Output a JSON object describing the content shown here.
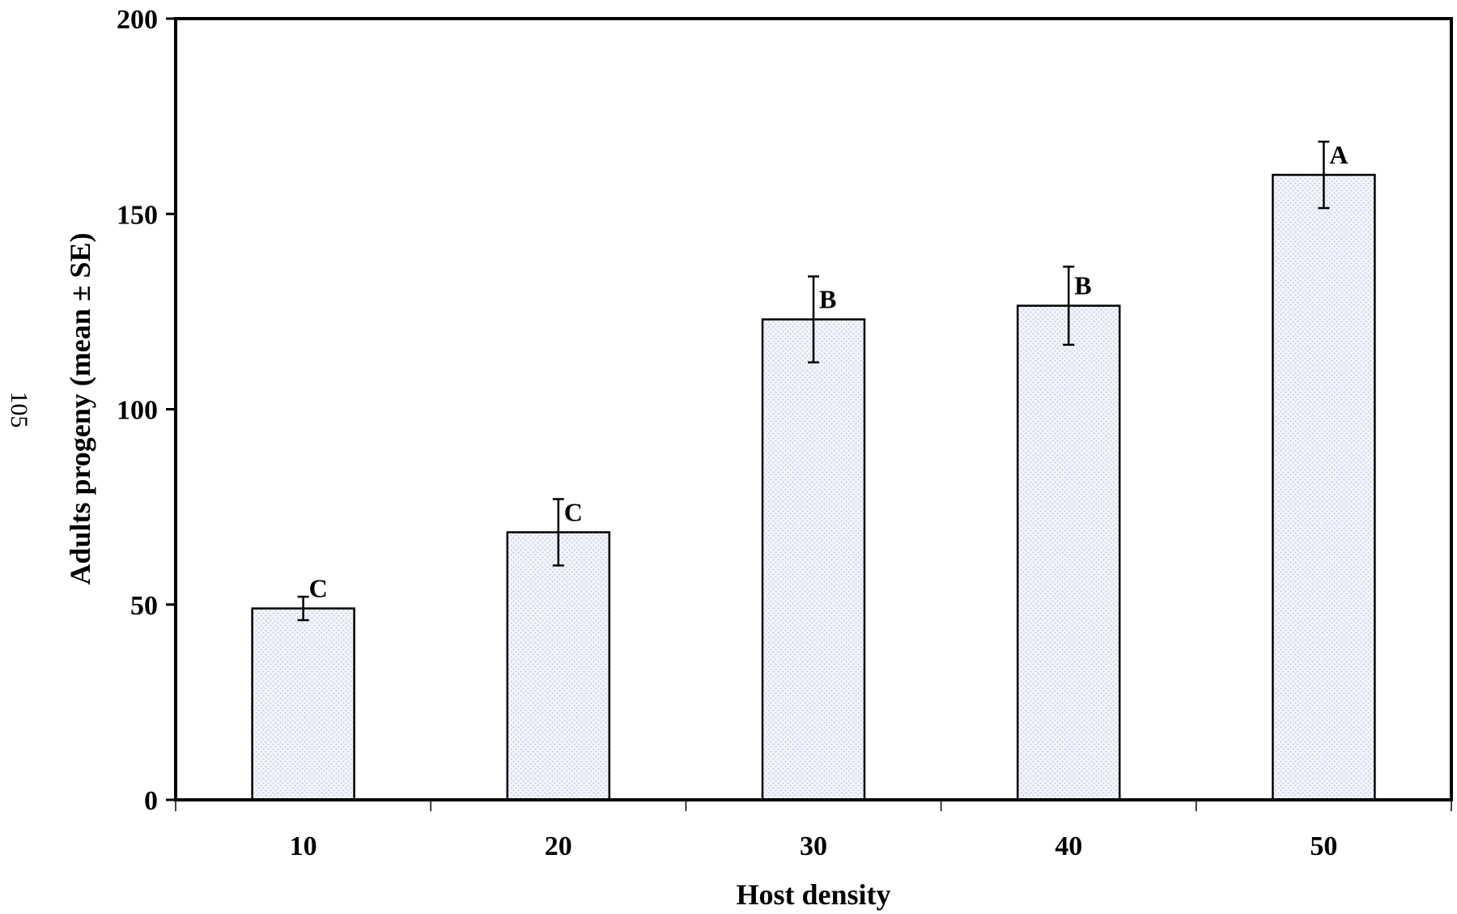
{
  "page_number": "105",
  "chart_data": {
    "type": "bar",
    "title": "",
    "xlabel": "Host density",
    "ylabel": "Adults progeny (mean ± SE)",
    "categories": [
      "10",
      "20",
      "30",
      "40",
      "50"
    ],
    "values": [
      49,
      68.5,
      123,
      126.5,
      160
    ],
    "errors": [
      3,
      8.5,
      11,
      10,
      8.5
    ],
    "significance_letters": [
      "C",
      "C",
      "B",
      "B",
      "A"
    ],
    "ylim": [
      0,
      200
    ],
    "yticks": [
      0,
      50,
      100,
      150,
      200
    ],
    "grid": false,
    "legend": "none",
    "colors": {
      "bar_fill": "#f2f4fb",
      "bar_dots": "#b8c1e2",
      "bar_edge": "#000000",
      "axis": "#000000"
    }
  }
}
